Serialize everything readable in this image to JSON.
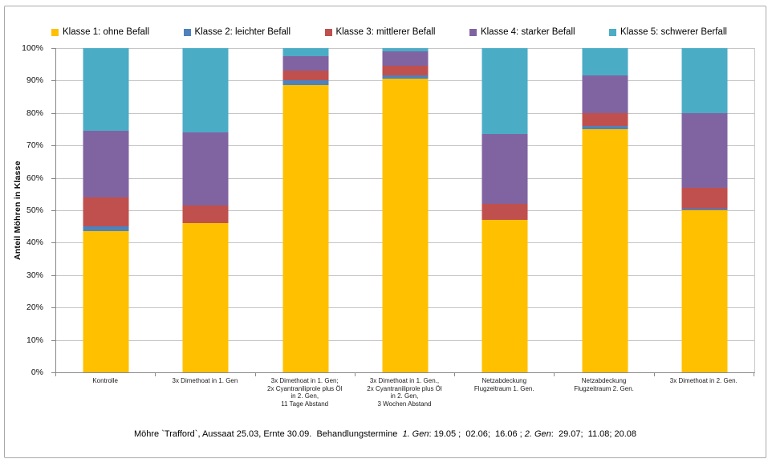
{
  "figure": {
    "footer": {
      "prefix": "Möhre `Trafford`, Aussaat 25.03, Ernte 30.09.  Behandlungstermine  ",
      "gen1_label": "1. Gen",
      "gen1_dates": ": 19.05 ;  02.06;  16.06 ; ",
      "gen2_label": "2. Gen",
      "gen2_dates": ":  29.07;  11.08; 20.08"
    }
  },
  "chart_data": {
    "type": "stacked-bar",
    "title": "",
    "ylabel": "Anteil Möhren in Klasse",
    "xlabel": "",
    "ylim": [
      0,
      100
    ],
    "grid": true,
    "legend_position": "top",
    "yticks": [
      "0%",
      "10%",
      "20%",
      "30%",
      "40%",
      "50%",
      "60%",
      "70%",
      "80%",
      "90%",
      "100%"
    ],
    "categories": [
      [
        "Kontrolle"
      ],
      [
        "3x Dimethoat in 1. Gen"
      ],
      [
        "3x Dimethoat in 1. Gen;",
        "2x Cyantraniliprole plus Öl",
        "in 2. Gen,",
        "11 Tage Abstand"
      ],
      [
        "3x Dimethoat in 1. Gen.,",
        "2x Cyantraniliprole plus Öl",
        "in 2. Gen,",
        "3 Wochen Abstand"
      ],
      [
        "Netzabdeckung",
        "Flugzeitraum 1. Gen."
      ],
      [
        "Netzabdeckung",
        "Flugzeitraum 2. Gen."
      ],
      [
        "3x Dimethoat in 2. Gen."
      ]
    ],
    "series": [
      {
        "name": "Klasse 1: ohne Befall",
        "color": "#FFC000",
        "values": [
          43.5,
          46.0,
          88.5,
          90.5,
          47.0,
          75.0,
          50.0
        ]
      },
      {
        "name": "Klasse 2: leichter Befall",
        "color": "#4F81BD",
        "values": [
          1.5,
          0.0,
          1.5,
          1.0,
          0.0,
          1.0,
          0.5
        ]
      },
      {
        "name": "Klasse 3: mittlerer Befall",
        "color": "#C0504D",
        "values": [
          9.0,
          5.5,
          3.0,
          3.0,
          5.0,
          4.0,
          6.5
        ]
      },
      {
        "name": "Klasse 4: starker Befall",
        "color": "#8064A2",
        "values": [
          20.5,
          22.5,
          4.5,
          4.5,
          21.5,
          11.5,
          23.0
        ]
      },
      {
        "name": "Klasse 5: schwerer Berfall",
        "color": "#4BACC6",
        "values": [
          25.5,
          26.0,
          2.5,
          1.0,
          26.5,
          8.5,
          20.0
        ]
      }
    ],
    "axis_color": "#898989",
    "gridline_color": "#c6c6c6"
  }
}
